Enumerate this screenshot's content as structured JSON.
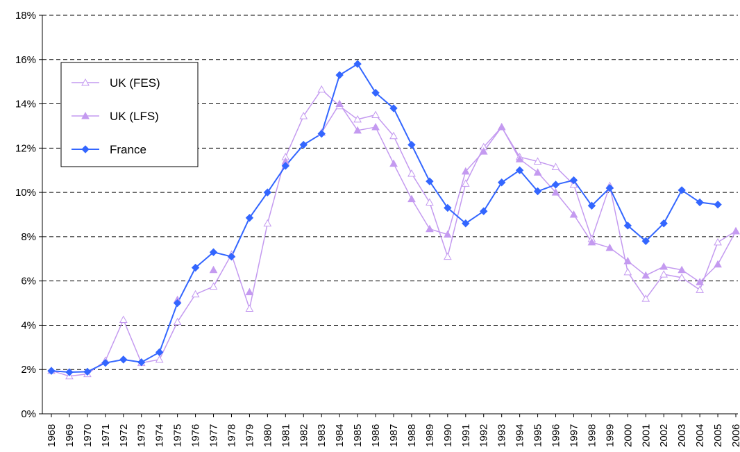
{
  "chart_data": {
    "type": "line",
    "categories": [
      "1968",
      "1969",
      "1970",
      "1971",
      "1972",
      "1973",
      "1974",
      "1975",
      "1976",
      "1977",
      "1978",
      "1979",
      "1980",
      "1981",
      "1982",
      "1983",
      "1984",
      "1985",
      "1986",
      "1987",
      "1988",
      "1989",
      "1990",
      "1991",
      "1992",
      "1993",
      "1994",
      "1995",
      "1996",
      "1997",
      "1998",
      "1999",
      "2000",
      "2001",
      "2002",
      "2003",
      "2004",
      "2005",
      "2006"
    ],
    "series": [
      {
        "name": "UK (FES)",
        "color": "#c49af0",
        "marker": "triangle-open",
        "values": [
          1.95,
          1.7,
          1.8,
          2.4,
          4.25,
          2.3,
          2.45,
          4.15,
          5.4,
          5.75,
          7.2,
          4.75,
          8.6,
          11.6,
          13.45,
          14.65,
          13.9,
          13.3,
          13.5,
          12.55,
          10.85,
          9.55,
          7.1,
          10.4,
          12.05,
          12.95,
          11.6,
          11.4,
          11.15,
          10.35,
          7.9,
          10.3,
          6.4,
          5.2,
          6.3,
          6.15,
          5.6,
          7.75,
          8.25
        ]
      },
      {
        "name": "UK (LFS)",
        "color": "#c49af0",
        "marker": "triangle",
        "values": [
          null,
          null,
          null,
          null,
          null,
          null,
          null,
          5.15,
          null,
          6.5,
          null,
          5.5,
          null,
          11.4,
          null,
          12.7,
          14.0,
          12.8,
          12.95,
          11.3,
          9.7,
          8.35,
          8.1,
          10.95,
          11.85,
          12.95,
          11.5,
          10.9,
          10.0,
          9.0,
          7.75,
          7.5,
          6.9,
          6.25,
          6.65,
          6.5,
          5.95,
          6.75,
          8.25
        ]
      },
      {
        "name": "France",
        "color": "#3366ff",
        "marker": "diamond",
        "values": [
          1.94,
          1.88,
          1.9,
          2.3,
          2.45,
          2.33,
          2.78,
          5.0,
          6.6,
          7.3,
          7.1,
          8.85,
          10.0,
          11.2,
          12.15,
          12.65,
          15.3,
          15.8,
          14.5,
          13.8,
          12.15,
          10.5,
          9.3,
          8.6,
          9.15,
          10.45,
          11.0,
          10.05,
          10.35,
          10.55,
          9.4,
          10.2,
          8.5,
          7.8,
          8.6,
          10.1,
          9.55,
          9.45,
          null
        ]
      }
    ],
    "ylim": [
      0,
      18
    ],
    "yticks": [
      {
        "value": 0,
        "label": "0%"
      },
      {
        "value": 2,
        "label": "2%"
      },
      {
        "value": 4,
        "label": "4%"
      },
      {
        "value": 6,
        "label": "6%"
      },
      {
        "value": 8,
        "label": "8%"
      },
      {
        "value": 10,
        "label": "10%"
      },
      {
        "value": 12,
        "label": "12%"
      },
      {
        "value": 14,
        "label": "14%"
      },
      {
        "value": 16,
        "label": "16%"
      },
      {
        "value": 18,
        "label": "18%"
      }
    ],
    "grid": true
  }
}
